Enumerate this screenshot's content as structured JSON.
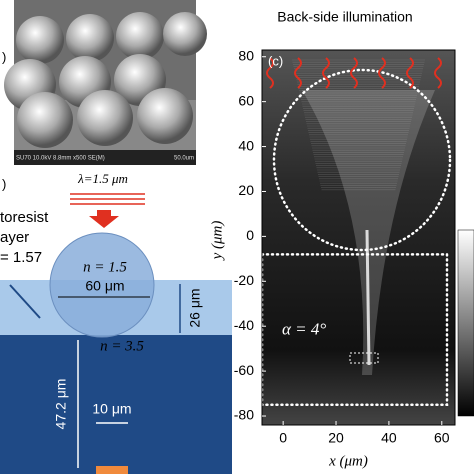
{
  "chart_data": {
    "type": "heatmap",
    "title": "Back-side illumination",
    "panel_label": "(c)",
    "x_label": "x (μm)",
    "y_label": "y (μm)",
    "annotation": "α = 4°",
    "xlim": [
      -8,
      65
    ],
    "ylim": [
      -84,
      83
    ],
    "xticks": [
      0,
      20,
      40,
      60
    ],
    "yticks": [
      80,
      60,
      40,
      20,
      0,
      -20,
      -40,
      -60,
      -80
    ]
  },
  "panel_a": {
    "label": ")",
    "sem_caption": "SU70 10.0kV 8.8mm x500 SE(M)",
    "scale_label": "50.0um"
  },
  "panel_b": {
    "label": ")",
    "wavelength": "λ=1.5 μm",
    "sphere_index": "n = 1.5",
    "sphere_size": "60 μm",
    "resist_line1": "toresist",
    "resist_line2": "ayer",
    "resist_index": "= 1.57",
    "substrate_index": "n = 3.5",
    "resist_thickness": "26 μm",
    "substrate_thickness": "47.2 μm",
    "pixel_size": "10 μm"
  }
}
